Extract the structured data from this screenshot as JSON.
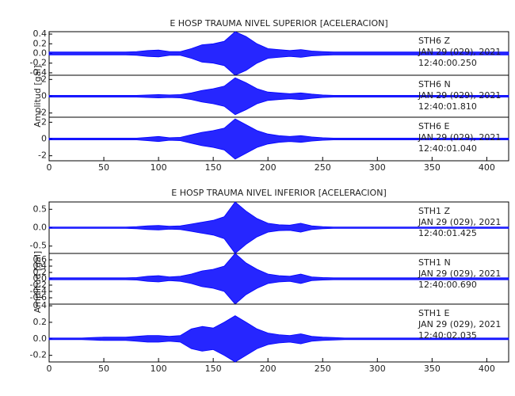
{
  "chart_data": [
    {
      "type": "area",
      "title": "E HOSP TRAUMA NIVEL SUPERIOR [ACELERACION]",
      "y_label": "Amplitud [gal]",
      "color": "#0000ff",
      "x": [
        0,
        10,
        20,
        30,
        40,
        50,
        60,
        70,
        80,
        90,
        100,
        110,
        120,
        130,
        140,
        150,
        160,
        170,
        180,
        190,
        200,
        210,
        220,
        230,
        240,
        250,
        260,
        270,
        280,
        290,
        300,
        310,
        320,
        330,
        340,
        350,
        360,
        370,
        380,
        390,
        400,
        410,
        420
      ],
      "xlim": [
        0,
        420
      ],
      "xticks": [
        0,
        50,
        100,
        150,
        200,
        250,
        300,
        350,
        400
      ],
      "panels": [
        {
          "station": "STH6   Z",
          "date": "JAN 29 (029), 2021",
          "time": "12:40:00.250",
          "ylim": [
            -0.45,
            0.45
          ],
          "yticks": [
            -0.4,
            -0.2,
            {
              "value": 0,
              "label": "0.0"
            },
            0.2,
            0.4
          ],
          "values": [
            0.03,
            0.03,
            0.03,
            0.03,
            0.03,
            0.03,
            0.03,
            0.03,
            0.04,
            0.06,
            0.07,
            0.04,
            0.04,
            0.1,
            0.18,
            0.2,
            0.25,
            0.45,
            0.35,
            0.2,
            0.1,
            0.08,
            0.06,
            0.08,
            0.05,
            0.04,
            0.03,
            0.03,
            0.03,
            0.03,
            0.03,
            0.03,
            0.03,
            0.03,
            0.03,
            0.03,
            0.03,
            0.03,
            0.03,
            0.03,
            0.03,
            0.03,
            0.03
          ]
        },
        {
          "station": "STH6   N",
          "date": "JAN 29 (029), 2021",
          "time": "12:40:01.810",
          "ylim": [
            -2.5,
            2.5
          ],
          "yticks": [
            -2,
            0,
            2
          ],
          "values": [
            0.1,
            0.1,
            0.1,
            0.1,
            0.1,
            0.1,
            0.1,
            0.1,
            0.1,
            0.15,
            0.2,
            0.15,
            0.2,
            0.4,
            0.7,
            0.9,
            1.2,
            2.2,
            1.6,
            0.9,
            0.5,
            0.4,
            0.3,
            0.4,
            0.25,
            0.15,
            0.1,
            0.1,
            0.1,
            0.1,
            0.1,
            0.1,
            0.1,
            0.1,
            0.1,
            0.1,
            0.1,
            0.1,
            0.1,
            0.1,
            0.1,
            0.1,
            0.1
          ]
        },
        {
          "station": "STH6   E",
          "date": "JAN 29 (029), 2021",
          "time": "12:40:01.040",
          "ylim": [
            -2.6,
            2.6
          ],
          "yticks": [
            -2,
            0,
            2
          ],
          "values": [
            0.1,
            0.1,
            0.1,
            0.1,
            0.1,
            0.1,
            0.1,
            0.1,
            0.1,
            0.2,
            0.3,
            0.15,
            0.2,
            0.5,
            0.8,
            1.0,
            1.3,
            2.4,
            1.7,
            1.0,
            0.6,
            0.4,
            0.3,
            0.4,
            0.25,
            0.15,
            0.1,
            0.1,
            0.1,
            0.1,
            0.1,
            0.1,
            0.1,
            0.1,
            0.1,
            0.1,
            0.1,
            0.1,
            0.1,
            0.1,
            0.1,
            0.1,
            0.1
          ]
        }
      ]
    },
    {
      "type": "area",
      "title": "E HOSP TRAUMA NIVEL INFERIOR [ACELERACION]",
      "y_label": "Amplitud [gal]",
      "color": "#0000ff",
      "x": [
        0,
        10,
        20,
        30,
        40,
        50,
        60,
        70,
        80,
        90,
        100,
        110,
        120,
        130,
        140,
        150,
        160,
        170,
        180,
        190,
        200,
        210,
        220,
        230,
        240,
        250,
        260,
        270,
        280,
        290,
        300,
        310,
        320,
        330,
        340,
        350,
        360,
        370,
        380,
        390,
        400,
        410,
        420
      ],
      "xlim": [
        0,
        420
      ],
      "xticks": [
        0,
        50,
        100,
        150,
        200,
        250,
        300,
        350,
        400
      ],
      "panels": [
        {
          "station": "STH1   Z",
          "date": "JAN 29 (029), 2021",
          "time": "12:40:01.425",
          "ylim": [
            -0.7,
            0.7
          ],
          "yticks": [
            -0.5,
            {
              "value": 0,
              "label": "0.0"
            },
            0.5
          ],
          "values": [
            0.02,
            0.02,
            0.02,
            0.02,
            0.02,
            0.02,
            0.02,
            0.02,
            0.03,
            0.05,
            0.06,
            0.04,
            0.05,
            0.1,
            0.15,
            0.2,
            0.3,
            0.7,
            0.45,
            0.25,
            0.12,
            0.08,
            0.07,
            0.12,
            0.05,
            0.03,
            0.02,
            0.02,
            0.02,
            0.02,
            0.02,
            0.02,
            0.02,
            0.02,
            0.02,
            0.02,
            0.02,
            0.02,
            0.02,
            0.02,
            0.02,
            0.02,
            0.02
          ]
        },
        {
          "station": "STH1   N",
          "date": "JAN 29 (029), 2021",
          "time": "12:40:00.690",
          "ylim": [
            -0.8,
            0.8
          ],
          "yticks": [
            -0.6,
            -0.4,
            -0.2,
            {
              "value": 0,
              "label": "0.0"
            },
            0.2,
            0.4,
            0.6
          ],
          "values": [
            0.03,
            0.03,
            0.03,
            0.03,
            0.03,
            0.03,
            0.03,
            0.03,
            0.04,
            0.08,
            0.1,
            0.06,
            0.08,
            0.15,
            0.25,
            0.3,
            0.4,
            0.8,
            0.5,
            0.3,
            0.15,
            0.1,
            0.08,
            0.15,
            0.06,
            0.04,
            0.03,
            0.03,
            0.03,
            0.03,
            0.03,
            0.03,
            0.03,
            0.03,
            0.03,
            0.03,
            0.03,
            0.03,
            0.03,
            0.03,
            0.03,
            0.03,
            0.03
          ]
        },
        {
          "station": "STH1   E",
          "date": "JAN 29 (029), 2021",
          "time": "12:40:02.035",
          "ylim": [
            -0.28,
            0.42
          ],
          "yticks": [
            -0.2,
            {
              "value": 0,
              "label": "0.0"
            },
            0.2,
            0.4
          ],
          "values": [
            0.01,
            0.01,
            0.01,
            0.01,
            0.015,
            0.02,
            0.02,
            0.02,
            0.03,
            0.04,
            0.04,
            0.03,
            0.04,
            0.12,
            0.15,
            0.13,
            0.2,
            0.28,
            0.2,
            0.12,
            0.07,
            0.05,
            0.04,
            0.06,
            0.03,
            0.02,
            0.015,
            0.01,
            0.01,
            0.01,
            0.01,
            0.01,
            0.01,
            0.01,
            0.01,
            0.01,
            0.01,
            0.01,
            0.01,
            0.01,
            0.01,
            0.01,
            0.01
          ]
        }
      ]
    }
  ]
}
